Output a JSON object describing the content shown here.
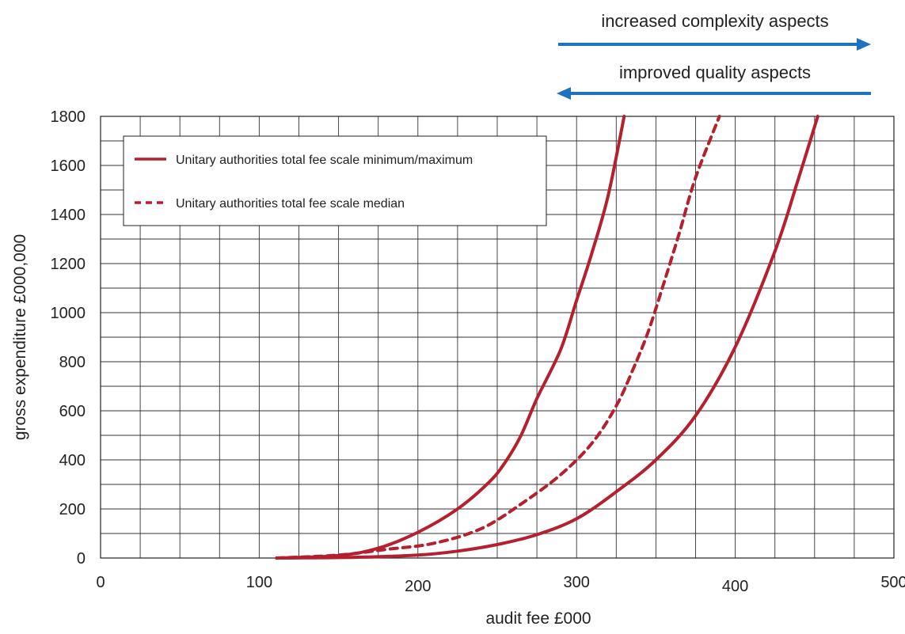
{
  "chart_data": {
    "type": "line",
    "xlabel": "audit fee £000",
    "ylabel": "gross expenditure £000,000",
    "xlim": [
      0,
      500
    ],
    "ylim": [
      0,
      1800
    ],
    "x_ticks": [
      "0",
      "100",
      "200",
      "300",
      "400",
      "500"
    ],
    "y_ticks": [
      "0",
      "200",
      "400",
      "600",
      "800",
      "1000",
      "1200",
      "1400",
      "1600",
      "1800"
    ],
    "grid": true,
    "legend_position": "top-left",
    "series": [
      {
        "name": "Unitary authorities total fee scale minimum/maximum",
        "style": "solid",
        "color": "#b5202e",
        "points": [
          [
            111,
            0
          ],
          [
            150,
            10
          ],
          [
            175,
            40
          ],
          [
            200,
            105
          ],
          [
            225,
            200
          ],
          [
            245,
            310
          ],
          [
            255,
            390
          ],
          [
            265,
            500
          ],
          [
            275,
            650
          ],
          [
            290,
            850
          ],
          [
            300,
            1050
          ],
          [
            310,
            1250
          ],
          [
            320,
            1480
          ],
          [
            330,
            1800
          ]
        ]
      },
      {
        "name": "Unitary authorities total fee scale median",
        "style": "dashed",
        "color": "#b5202e",
        "points": [
          [
            111,
            0
          ],
          [
            150,
            12
          ],
          [
            180,
            35
          ],
          [
            210,
            60
          ],
          [
            240,
            120
          ],
          [
            265,
            220
          ],
          [
            290,
            340
          ],
          [
            310,
            470
          ],
          [
            325,
            620
          ],
          [
            335,
            760
          ],
          [
            345,
            920
          ],
          [
            355,
            1120
          ],
          [
            365,
            1330
          ],
          [
            375,
            1550
          ],
          [
            390,
            1800
          ]
        ]
      },
      {
        "name": "",
        "style": "solid",
        "color": "#b5202e",
        "points": [
          [
            111,
            0
          ],
          [
            160,
            3
          ],
          [
            200,
            12
          ],
          [
            225,
            28
          ],
          [
            250,
            55
          ],
          [
            275,
            95
          ],
          [
            300,
            160
          ],
          [
            325,
            270
          ],
          [
            350,
            400
          ],
          [
            375,
            580
          ],
          [
            400,
            860
          ],
          [
            425,
            1250
          ],
          [
            440,
            1550
          ],
          [
            452,
            1800
          ]
        ]
      }
    ],
    "annotations": [
      {
        "text": "increased complexity aspects",
        "arrow": "right",
        "color": "#1e73be"
      },
      {
        "text": "improved quality aspects",
        "arrow": "left",
        "color": "#1e73be"
      }
    ],
    "legend_entries": [
      {
        "label": "Unitary authorities total fee scale minimum/maximum",
        "style": "solid"
      },
      {
        "label": "Unitary authorities total fee scale median",
        "style": "dashed"
      }
    ]
  }
}
